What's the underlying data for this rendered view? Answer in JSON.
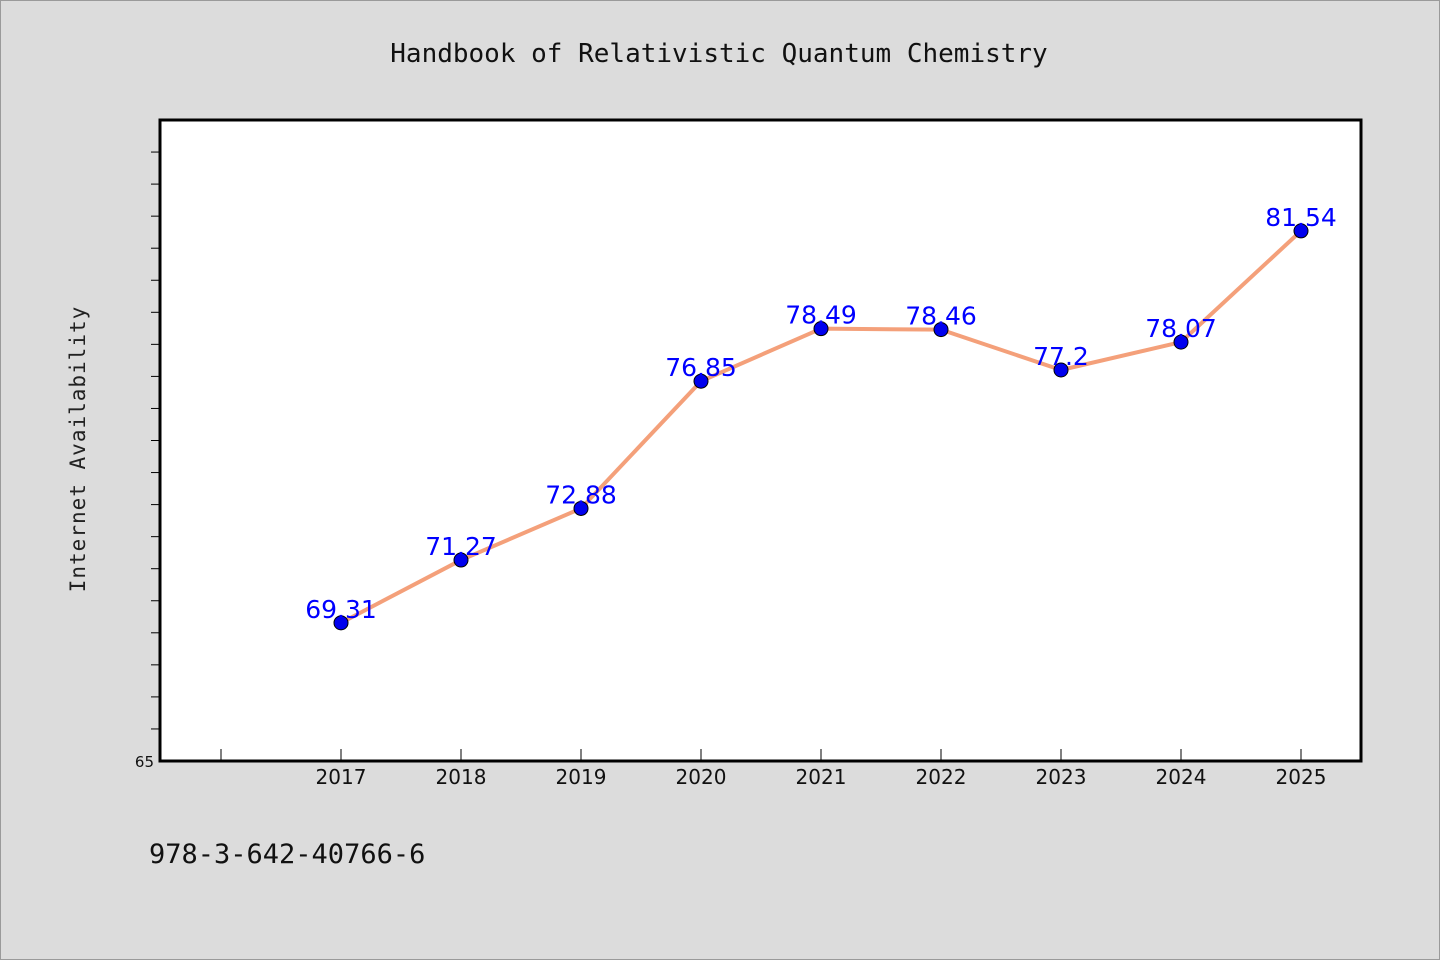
{
  "footer": {
    "code": "978-3-642-40766-6"
  },
  "colors": {
    "line": "#f4a07a",
    "marker": "#0000ee",
    "label": "#0000ff",
    "background": "#dcdcdc",
    "plot_bg": "#ffffff"
  },
  "chart_data": {
    "type": "line",
    "title": "Handbook of Relativistic Quantum Chemistry",
    "xlabel": "",
    "ylabel": "Internet Availability",
    "categories": [
      "2017",
      "2018",
      "2019",
      "2020",
      "2021",
      "2022",
      "2023",
      "2024",
      "2025"
    ],
    "series": [
      {
        "values": [
          69.31,
          71.27,
          72.88,
          76.85,
          78.49,
          78.46,
          77.2,
          78.07,
          81.54
        ]
      }
    ],
    "data_labels": [
      "69.31",
      "71.27",
      "72.88",
      "76.85",
      "78.49",
      "78.46",
      "77.2",
      "78.07",
      "81.54"
    ],
    "ylim": [
      65,
      85
    ],
    "ytick_labels": [
      "65"
    ],
    "grid": false,
    "legend": "none"
  }
}
